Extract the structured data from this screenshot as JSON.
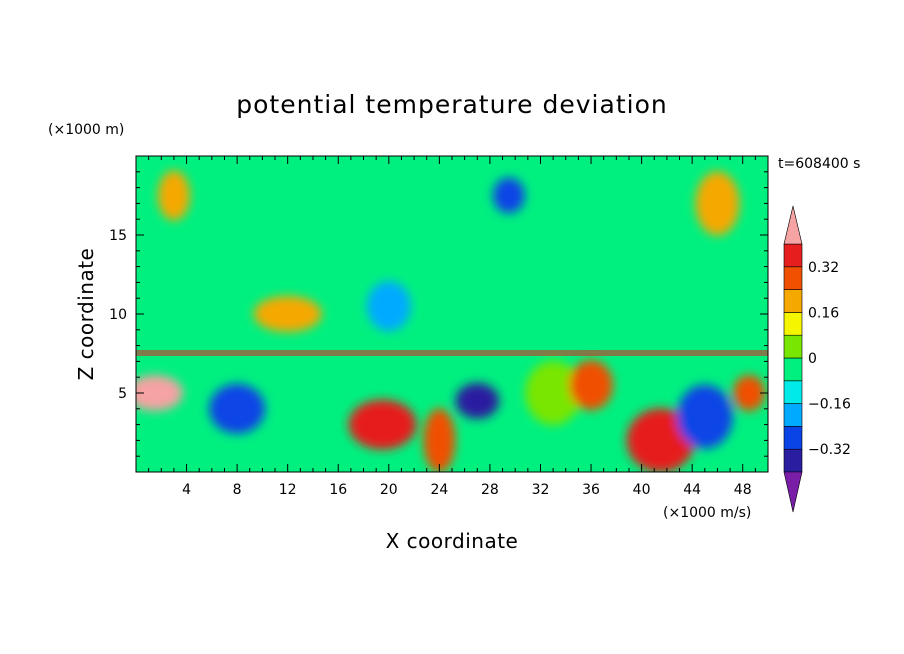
{
  "chart_data": {
    "type": "heatmap",
    "title": "potential temperature deviation",
    "xlabel": "X coordinate",
    "ylabel": "Z coordinate",
    "x_unit": "(×1000 m/s)",
    "y_unit": "(×1000 m)",
    "time_label": "t=608400 s",
    "xlim": [
      0,
      50
    ],
    "ylim": [
      0,
      20
    ],
    "x_ticks": [
      4,
      8,
      12,
      16,
      20,
      24,
      28,
      32,
      36,
      40,
      44,
      48
    ],
    "y_ticks": [
      5,
      10,
      15
    ],
    "colorbar": {
      "levels": [
        -0.4,
        -0.32,
        -0.24,
        -0.16,
        -0.08,
        0,
        0.08,
        0.16,
        0.24,
        0.32,
        0.4
      ],
      "colors": [
        "#7a1ea8",
        "#2a1ea0",
        "#0a44e6",
        "#00aaff",
        "#00eaea",
        "#00f080",
        "#78e600",
        "#f5f500",
        "#f5a800",
        "#f05000",
        "#e61e1e",
        "#f5a3a3"
      ],
      "tick_labels": [
        "0.32",
        "0.16",
        "0",
        "-0.16",
        "-0.32"
      ],
      "tick_values": [
        0.32,
        0.16,
        0,
        -0.16,
        -0.32
      ]
    },
    "field_features": [
      {
        "x": 29.5,
        "z": 17.5,
        "value": -0.3
      },
      {
        "x": 20.0,
        "z": 10.5,
        "value": -0.2
      },
      {
        "x": 33.0,
        "z": 5.0,
        "value": 0.0
      },
      {
        "x": 12.0,
        "z": 10.0,
        "value": 0.2
      },
      {
        "x": 3.0,
        "z": 17.5,
        "value": 0.2
      },
      {
        "x": 46.0,
        "z": 17.0,
        "value": 0.2
      },
      {
        "x": 1.5,
        "z": 5.0,
        "value": 0.4
      },
      {
        "x": 19.5,
        "z": 3.0,
        "value": 0.35
      },
      {
        "x": 24.0,
        "z": 2.0,
        "value": 0.3
      },
      {
        "x": 27.0,
        "z": 4.5,
        "value": -0.35
      },
      {
        "x": 8.0,
        "z": 4.0,
        "value": -0.3
      },
      {
        "x": 41.5,
        "z": 2.0,
        "value": 0.35
      },
      {
        "x": 48.5,
        "z": 5.0,
        "value": 0.3
      },
      {
        "x": 36.0,
        "z": 5.5,
        "value": 0.25
      },
      {
        "x": 45.0,
        "z": 3.5,
        "value": -0.3
      }
    ]
  }
}
